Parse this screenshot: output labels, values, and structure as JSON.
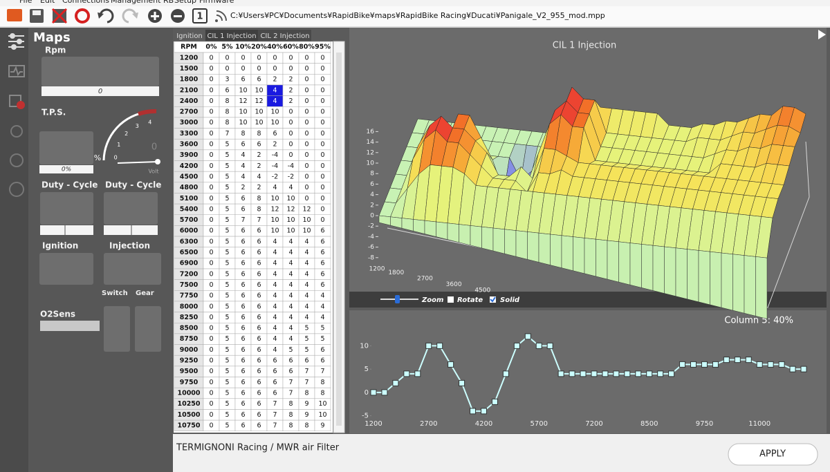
{
  "menu": [
    "File",
    "Edit",
    "Connections",
    "Management RB",
    "Setup",
    "Firmware"
  ],
  "toolbar_number": 1,
  "file_path": "C:¥Users¥PC¥Documents¥RapidBike¥maps¥RapidBike Racing¥Ducati¥Panigale_V2_955_mod.mpp",
  "sidebar": {
    "title": "Maps",
    "rpm_label": "Rpm",
    "rpm_value": 0,
    "tps_label": "T.P.S.",
    "tps_value": "0%",
    "gauge_ticks": [
      0,
      1,
      2,
      3,
      4
    ],
    "gauge_unit": "%",
    "volt_value": 0,
    "volt_unit": "Volt",
    "duty_cycle_labels": [
      "Duty - Cycle",
      "Duty - Cycle"
    ],
    "ignition": "Ignition",
    "injection": "Injection",
    "switch": "Switch",
    "gear": "Gear",
    "o2sens": "O2Sens"
  },
  "tabs": [
    "Ignition",
    "CIL 1 Injection",
    "CIL 2 Injection"
  ],
  "table": {
    "header": [
      "RPM",
      "0%",
      "5%",
      "10%",
      "20%",
      "40%",
      "60%",
      "80%",
      "95%"
    ],
    "rows": [
      {
        "rpm": 1200,
        "values": [
          0,
          0,
          0,
          0,
          0,
          0,
          0,
          0
        ]
      },
      {
        "rpm": 1500,
        "values": [
          0,
          0,
          0,
          0,
          0,
          0,
          0,
          0
        ]
      },
      {
        "rpm": 1800,
        "values": [
          0,
          3,
          6,
          6,
          2,
          2,
          0,
          0
        ]
      },
      {
        "rpm": 2100,
        "values": [
          0,
          6,
          10,
          10,
          4,
          2,
          0,
          0
        ]
      },
      {
        "rpm": 2400,
        "values": [
          0,
          8,
          12,
          12,
          4,
          2,
          0,
          0
        ]
      },
      {
        "rpm": 2700,
        "values": [
          0,
          8,
          10,
          10,
          10,
          0,
          0,
          0
        ]
      },
      {
        "rpm": 3000,
        "values": [
          0,
          8,
          10,
          10,
          10,
          0,
          0,
          0
        ]
      },
      {
        "rpm": 3300,
        "values": [
          0,
          7,
          8,
          8,
          6,
          0,
          0,
          0
        ]
      },
      {
        "rpm": 3600,
        "values": [
          0,
          5,
          6,
          6,
          2,
          0,
          0,
          0
        ]
      },
      {
        "rpm": 3900,
        "values": [
          0,
          5,
          4,
          2,
          -4,
          0,
          0,
          0
        ]
      },
      {
        "rpm": 4200,
        "values": [
          0,
          5,
          4,
          2,
          -4,
          -4,
          0,
          0
        ]
      },
      {
        "rpm": 4500,
        "values": [
          0,
          5,
          4,
          4,
          -2,
          -2,
          0,
          0
        ]
      },
      {
        "rpm": 4800,
        "values": [
          0,
          5,
          2,
          2,
          4,
          4,
          0,
          0
        ]
      },
      {
        "rpm": 5100,
        "values": [
          0,
          5,
          6,
          8,
          10,
          10,
          0,
          0
        ]
      },
      {
        "rpm": 5400,
        "values": [
          0,
          5,
          6,
          8,
          12,
          12,
          12,
          0
        ]
      },
      {
        "rpm": 5700,
        "values": [
          0,
          5,
          7,
          7,
          10,
          10,
          10,
          0
        ]
      },
      {
        "rpm": 6000,
        "values": [
          0,
          5,
          6,
          6,
          10,
          10,
          10,
          6
        ]
      },
      {
        "rpm": 6300,
        "values": [
          0,
          5,
          6,
          6,
          4,
          4,
          4,
          6
        ]
      },
      {
        "rpm": 6500,
        "values": [
          0,
          5,
          6,
          6,
          4,
          4,
          4,
          6
        ]
      },
      {
        "rpm": 6900,
        "values": [
          0,
          5,
          6,
          6,
          4,
          4,
          4,
          6
        ]
      },
      {
        "rpm": 7200,
        "values": [
          0,
          5,
          6,
          6,
          4,
          4,
          4,
          6
        ]
      },
      {
        "rpm": 7500,
        "values": [
          0,
          5,
          6,
          6,
          4,
          4,
          4,
          6
        ]
      },
      {
        "rpm": 7750,
        "values": [
          0,
          5,
          6,
          6,
          4,
          4,
          4,
          4
        ]
      },
      {
        "rpm": 8000,
        "values": [
          0,
          5,
          6,
          6,
          4,
          4,
          4,
          4
        ]
      },
      {
        "rpm": 8250,
        "values": [
          0,
          5,
          6,
          6,
          4,
          4,
          4,
          4
        ]
      },
      {
        "rpm": 8500,
        "values": [
          0,
          5,
          6,
          6,
          4,
          4,
          5,
          5
        ]
      },
      {
        "rpm": 8750,
        "values": [
          0,
          5,
          6,
          6,
          4,
          4,
          5,
          5
        ]
      },
      {
        "rpm": 9000,
        "values": [
          0,
          5,
          6,
          6,
          4,
          5,
          5,
          6
        ]
      },
      {
        "rpm": 9250,
        "values": [
          0,
          5,
          6,
          6,
          6,
          6,
          6,
          6
        ]
      },
      {
        "rpm": 9500,
        "values": [
          0,
          5,
          6,
          6,
          6,
          6,
          7,
          7
        ]
      },
      {
        "rpm": 9750,
        "values": [
          0,
          5,
          6,
          6,
          6,
          7,
          7,
          8
        ]
      },
      {
        "rpm": 10000,
        "values": [
          0,
          5,
          6,
          6,
          6,
          7,
          8,
          8
        ]
      },
      {
        "rpm": 10250,
        "values": [
          0,
          5,
          6,
          6,
          7,
          8,
          9,
          10
        ]
      },
      {
        "rpm": 10500,
        "values": [
          0,
          5,
          6,
          6,
          7,
          8,
          9,
          10
        ]
      },
      {
        "rpm": 10750,
        "values": [
          0,
          5,
          6,
          6,
          7,
          8,
          8,
          9
        ]
      }
    ]
  },
  "surface_chart": {
    "title": "CIL 1 Injection",
    "zticks": [
      16,
      14,
      12,
      10,
      8,
      6,
      4,
      2,
      0,
      -2,
      -4,
      -6,
      -8
    ],
    "xticks": [
      1200,
      1800,
      2700,
      3600,
      4500
    ]
  },
  "controls": [
    "Zoom",
    "Rotate",
    "Solid"
  ],
  "chart_data": {
    "type": "line",
    "title": "Column 5: 40%",
    "categories": [
      "1200",
      null,
      null,
      null,
      null,
      "2700",
      null,
      null,
      null,
      null,
      "4200",
      null,
      null,
      null,
      null,
      "5700",
      null,
      null,
      null,
      null,
      "7200",
      null,
      null,
      null,
      null,
      "8500",
      null,
      null,
      null,
      null,
      "9750",
      null,
      null,
      null,
      null,
      "11000",
      null,
      null,
      null,
      null
    ],
    "values": [
      0,
      0,
      2,
      4,
      4,
      10,
      10,
      6,
      2,
      -4,
      -4,
      -2,
      4,
      10,
      12,
      10,
      10,
      4,
      4,
      4,
      4,
      4,
      4,
      4,
      4,
      4,
      4,
      4,
      6,
      6,
      6,
      6,
      7,
      7,
      7,
      6,
      6,
      6,
      5,
      5
    ],
    "color": "#ccffff",
    "ylim": [
      -5.5,
      14.5
    ],
    "yticks": [
      -5,
      0,
      5,
      10
    ]
  },
  "footer": {
    "note": "TERMIGNONI Racing / MWR air Filter",
    "button": "APPLY"
  }
}
